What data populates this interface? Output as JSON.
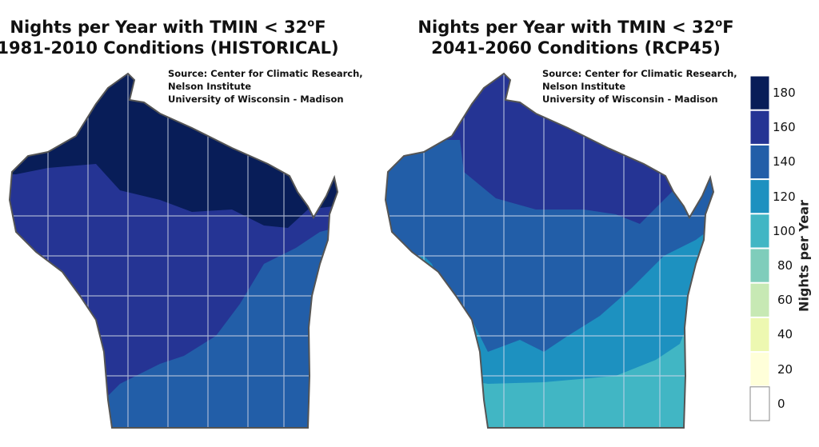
{
  "maps": [
    {
      "title_line1": "Nights per Year with TMIN < 32",
      "degree": "o",
      "unit": "F",
      "title_line2": "1981-2010 Conditions (HISTORICAL)",
      "zones": [
        "180",
        "160",
        "140"
      ]
    },
    {
      "title_line1": "Nights per Year with TMIN < 32",
      "degree": "o",
      "unit": "F",
      "title_line2": "2041-2060 Conditions (RCP45)",
      "zones": [
        "160",
        "140",
        "120",
        "100"
      ]
    }
  ],
  "source": {
    "line1": "Source:  Center for Climatic Research,",
    "line2": "Nelson Institute",
    "line3": "University of Wisconsin - Madison"
  },
  "legend": {
    "title": "Nights per Year",
    "ticks": [
      "180",
      "160",
      "140",
      "120",
      "100",
      "80",
      "60",
      "40",
      "20",
      "0"
    ],
    "colors": [
      "#081d58",
      "#253494",
      "#225ea8",
      "#1d91c0",
      "#41b6c4",
      "#7fcdbb",
      "#c7e9b4",
      "#edf8b1",
      "#ffffd9",
      "#ffffff"
    ]
  }
}
